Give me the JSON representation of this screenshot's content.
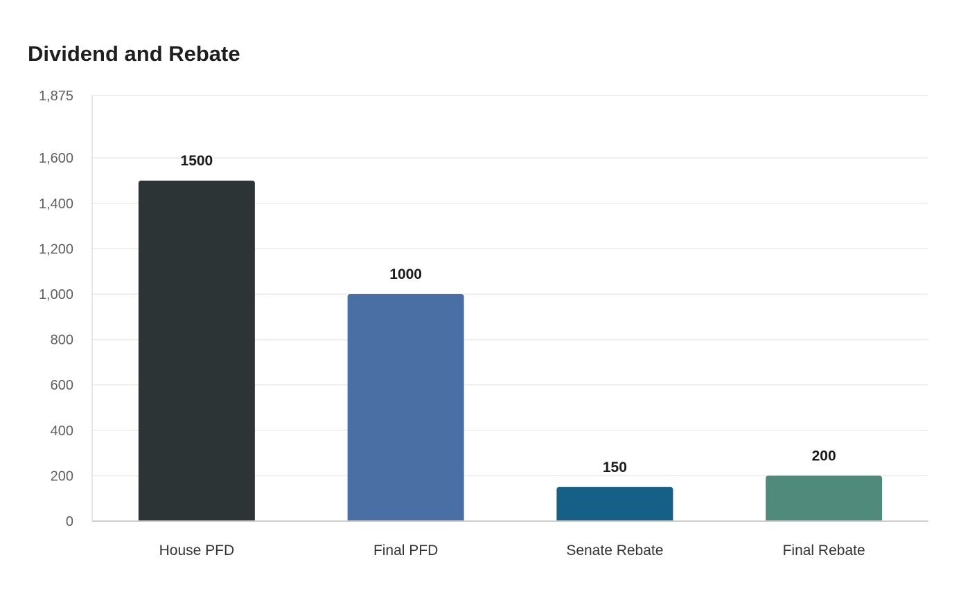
{
  "chart_data": {
    "type": "bar",
    "title": "Dividend and Rebate",
    "xlabel": "",
    "ylabel": "",
    "categories": [
      "House PFD",
      "Final PFD",
      "Senate Rebate",
      "Final Rebate"
    ],
    "values": [
      1500,
      1000,
      150,
      200
    ],
    "data_labels": [
      "1500",
      "1000",
      "150",
      "200"
    ],
    "colors": [
      "#2d3436",
      "#4a6fa5",
      "#166088",
      "#4f8a7b"
    ],
    "ylim": [
      0,
      1875
    ],
    "yticks": [
      0,
      200,
      400,
      600,
      800,
      1000,
      1200,
      1400,
      1600,
      1875
    ],
    "ytick_labels": [
      "0",
      "200",
      "400",
      "600",
      "800",
      "1,000",
      "1,200",
      "1,400",
      "1,600",
      "1,875"
    ],
    "grid": true,
    "legend": "none"
  }
}
